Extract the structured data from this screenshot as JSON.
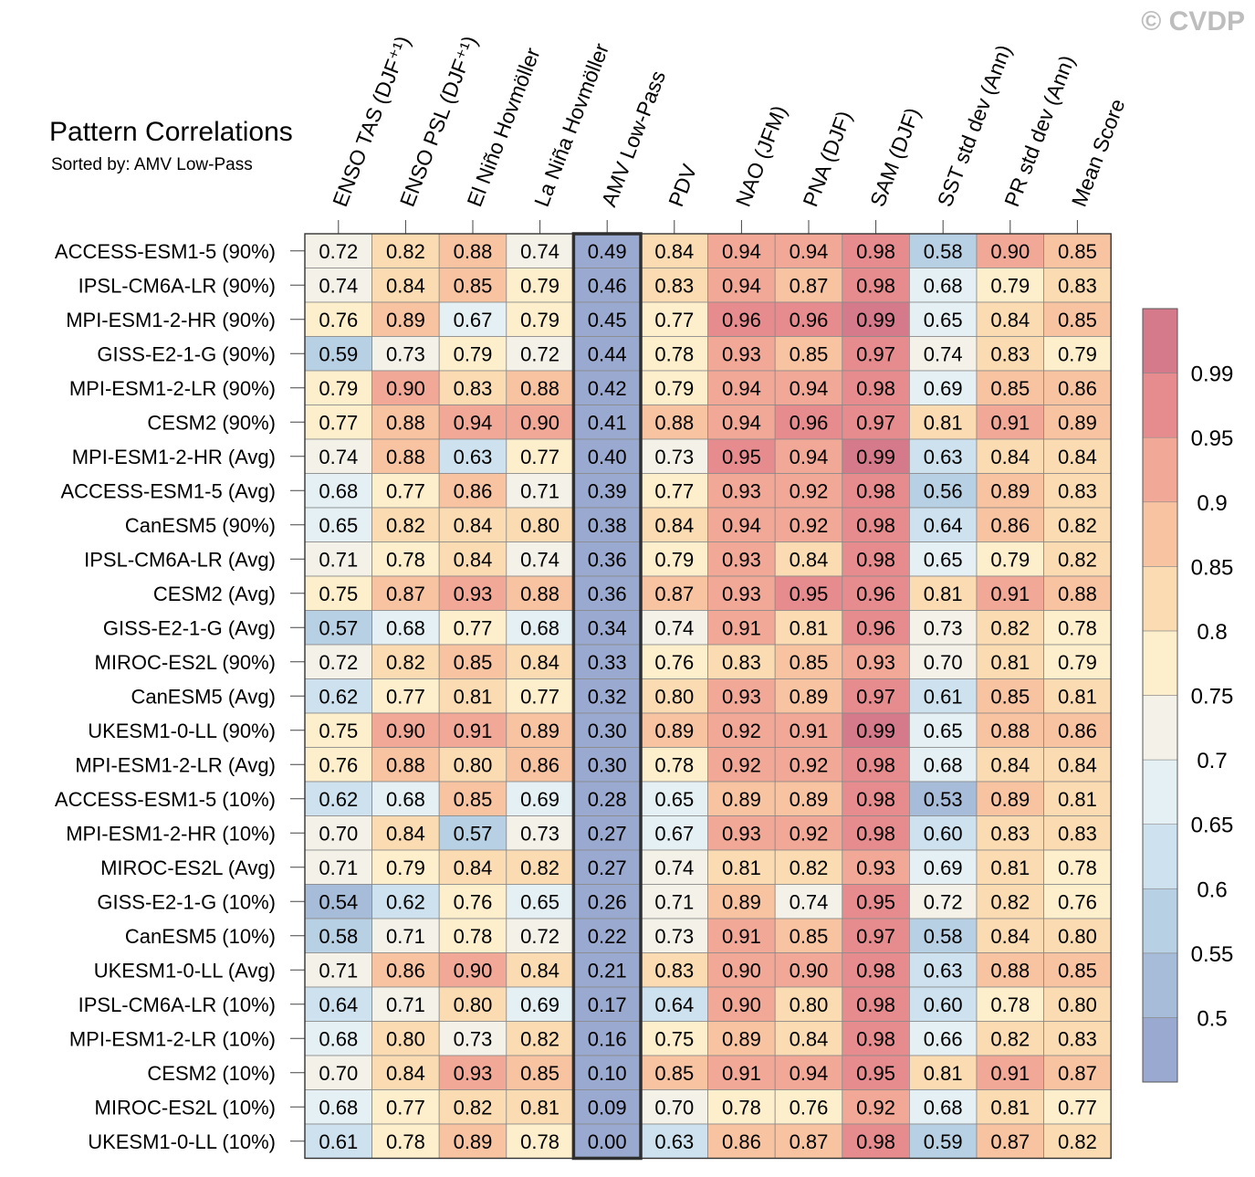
{
  "chart_data": {
    "type": "heatmap",
    "title": "Pattern Correlations",
    "subtitle": "Sorted by: AMV Low-Pass",
    "watermark": "© CVDP",
    "highlight_column": "AMV Low-Pass",
    "columns": [
      "ENSO TAS (DJF⁺¹)",
      "ENSO PSL (DJF⁺¹)",
      "El Niño Hovmöller",
      "La Niña Hovmöller",
      "AMV Low-Pass",
      "PDV",
      "NAO (JFM)",
      "PNA (DJF)",
      "SAM (DJF)",
      "SST std dev (Ann)",
      "PR std dev (Ann)",
      "Mean Score"
    ],
    "rows": [
      {
        "name": "ACCESS-ESM1-5 (90%)",
        "values": [
          0.72,
          0.82,
          0.88,
          0.74,
          0.49,
          0.84,
          0.94,
          0.94,
          0.98,
          0.58,
          0.9,
          0.85
        ]
      },
      {
        "name": "IPSL-CM6A-LR (90%)",
        "values": [
          0.74,
          0.84,
          0.85,
          0.79,
          0.46,
          0.83,
          0.94,
          0.87,
          0.98,
          0.68,
          0.79,
          0.83
        ]
      },
      {
        "name": "MPI-ESM1-2-HR (90%)",
        "values": [
          0.76,
          0.89,
          0.67,
          0.79,
          0.45,
          0.77,
          0.96,
          0.96,
          0.99,
          0.65,
          0.84,
          0.85
        ]
      },
      {
        "name": "GISS-E2-1-G (90%)",
        "values": [
          0.59,
          0.73,
          0.79,
          0.72,
          0.44,
          0.78,
          0.93,
          0.85,
          0.97,
          0.74,
          0.83,
          0.79
        ]
      },
      {
        "name": "MPI-ESM1-2-LR (90%)",
        "values": [
          0.79,
          0.9,
          0.83,
          0.88,
          0.42,
          0.79,
          0.94,
          0.94,
          0.98,
          0.69,
          0.85,
          0.86
        ]
      },
      {
        "name": "CESM2 (90%)",
        "values": [
          0.77,
          0.88,
          0.94,
          0.9,
          0.41,
          0.88,
          0.94,
          0.96,
          0.97,
          0.81,
          0.91,
          0.89
        ]
      },
      {
        "name": "MPI-ESM1-2-HR (Avg)",
        "values": [
          0.74,
          0.88,
          0.63,
          0.77,
          0.4,
          0.73,
          0.95,
          0.94,
          0.99,
          0.63,
          0.84,
          0.84
        ]
      },
      {
        "name": "ACCESS-ESM1-5 (Avg)",
        "values": [
          0.68,
          0.77,
          0.86,
          0.71,
          0.39,
          0.77,
          0.93,
          0.92,
          0.98,
          0.56,
          0.89,
          0.83
        ]
      },
      {
        "name": "CanESM5 (90%)",
        "values": [
          0.65,
          0.82,
          0.84,
          0.8,
          0.38,
          0.84,
          0.94,
          0.92,
          0.98,
          0.64,
          0.86,
          0.82
        ]
      },
      {
        "name": "IPSL-CM6A-LR (Avg)",
        "values": [
          0.71,
          0.78,
          0.84,
          0.74,
          0.36,
          0.79,
          0.93,
          0.84,
          0.98,
          0.65,
          0.79,
          0.82
        ]
      },
      {
        "name": "CESM2 (Avg)",
        "values": [
          0.75,
          0.87,
          0.93,
          0.88,
          0.36,
          0.87,
          0.93,
          0.95,
          0.96,
          0.81,
          0.91,
          0.88
        ]
      },
      {
        "name": "GISS-E2-1-G (Avg)",
        "values": [
          0.57,
          0.68,
          0.77,
          0.68,
          0.34,
          0.74,
          0.91,
          0.81,
          0.96,
          0.73,
          0.82,
          0.78
        ]
      },
      {
        "name": "MIROC-ES2L (90%)",
        "values": [
          0.72,
          0.82,
          0.85,
          0.84,
          0.33,
          0.76,
          0.83,
          0.85,
          0.93,
          0.7,
          0.81,
          0.79
        ]
      },
      {
        "name": "CanESM5 (Avg)",
        "values": [
          0.62,
          0.77,
          0.81,
          0.77,
          0.32,
          0.8,
          0.93,
          0.89,
          0.97,
          0.61,
          0.85,
          0.81
        ]
      },
      {
        "name": "UKESM1-0-LL (90%)",
        "values": [
          0.75,
          0.9,
          0.91,
          0.89,
          0.3,
          0.89,
          0.92,
          0.91,
          0.99,
          0.65,
          0.88,
          0.86
        ]
      },
      {
        "name": "MPI-ESM1-2-LR (Avg)",
        "values": [
          0.76,
          0.88,
          0.8,
          0.86,
          0.3,
          0.78,
          0.92,
          0.92,
          0.98,
          0.68,
          0.84,
          0.84
        ]
      },
      {
        "name": "ACCESS-ESM1-5 (10%)",
        "values": [
          0.62,
          0.68,
          0.85,
          0.69,
          0.28,
          0.65,
          0.89,
          0.89,
          0.98,
          0.53,
          0.89,
          0.81
        ]
      },
      {
        "name": "MPI-ESM1-2-HR (10%)",
        "values": [
          0.7,
          0.84,
          0.57,
          0.73,
          0.27,
          0.67,
          0.93,
          0.92,
          0.98,
          0.6,
          0.83,
          0.83
        ]
      },
      {
        "name": "MIROC-ES2L (Avg)",
        "values": [
          0.71,
          0.79,
          0.84,
          0.82,
          0.27,
          0.74,
          0.81,
          0.82,
          0.93,
          0.69,
          0.81,
          0.78
        ]
      },
      {
        "name": "GISS-E2-1-G (10%)",
        "values": [
          0.54,
          0.62,
          0.76,
          0.65,
          0.26,
          0.71,
          0.89,
          0.74,
          0.95,
          0.72,
          0.82,
          0.76
        ]
      },
      {
        "name": "CanESM5 (10%)",
        "values": [
          0.58,
          0.71,
          0.78,
          0.72,
          0.22,
          0.73,
          0.91,
          0.85,
          0.97,
          0.58,
          0.84,
          0.8
        ]
      },
      {
        "name": "UKESM1-0-LL (Avg)",
        "values": [
          0.71,
          0.86,
          0.9,
          0.84,
          0.21,
          0.83,
          0.9,
          0.9,
          0.98,
          0.63,
          0.88,
          0.85
        ]
      },
      {
        "name": "IPSL-CM6A-LR (10%)",
        "values": [
          0.64,
          0.71,
          0.8,
          0.69,
          0.17,
          0.64,
          0.9,
          0.8,
          0.98,
          0.6,
          0.78,
          0.8
        ]
      },
      {
        "name": "MPI-ESM1-2-LR (10%)",
        "values": [
          0.68,
          0.8,
          0.73,
          0.82,
          0.16,
          0.75,
          0.89,
          0.84,
          0.98,
          0.66,
          0.82,
          0.83
        ]
      },
      {
        "name": "CESM2 (10%)",
        "values": [
          0.7,
          0.84,
          0.93,
          0.85,
          0.1,
          0.85,
          0.91,
          0.94,
          0.95,
          0.81,
          0.91,
          0.87
        ]
      },
      {
        "name": "MIROC-ES2L (10%)",
        "values": [
          0.68,
          0.77,
          0.82,
          0.81,
          0.09,
          0.7,
          0.78,
          0.76,
          0.92,
          0.68,
          0.81,
          0.77
        ]
      },
      {
        "name": "UKESM1-0-LL (10%)",
        "values": [
          0.61,
          0.78,
          0.89,
          0.78,
          0.0,
          0.63,
          0.86,
          0.87,
          0.98,
          0.59,
          0.87,
          0.82
        ]
      }
    ],
    "colorbar": {
      "levels": [
        "0.5",
        "0.55",
        "0.6",
        "0.65",
        "0.7",
        "0.75",
        "0.8",
        "0.85",
        "0.9",
        "0.95",
        "0.99"
      ],
      "colors": [
        "#9aa9cf",
        "#a7bcd9",
        "#b8d0e3",
        "#cde2ee",
        "#e4f0f4",
        "#f4f2e8",
        "#fdeecc",
        "#fbdcb2",
        "#f8c3a0",
        "#f2a896",
        "#e78c8e",
        "#d47a8a"
      ]
    }
  }
}
